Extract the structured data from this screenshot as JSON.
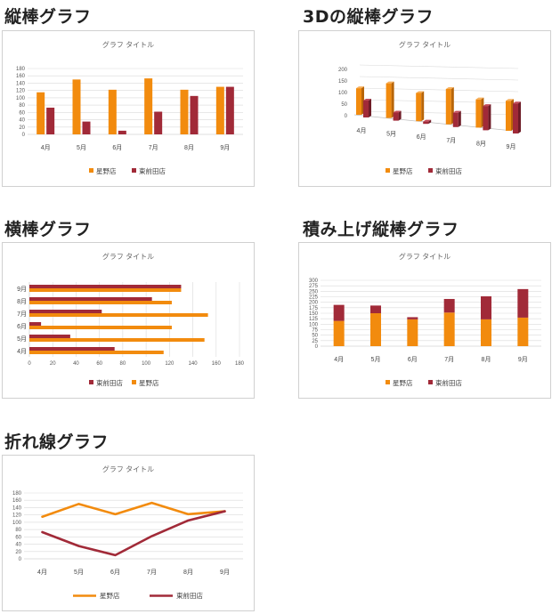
{
  "colors": {
    "s0": "#F28B0E",
    "s1": "#A12A38",
    "grid": "#D9D9D9",
    "axis": "#BFBFBF"
  },
  "charts": [
    {
      "heading": "縦棒グラフ",
      "chart_data": {
        "type": "bar",
        "title": "グラフ タイトル",
        "categories": [
          "4月",
          "5月",
          "6月",
          "7月",
          "8月",
          "9月"
        ],
        "series": [
          {
            "name": "星野店",
            "values": [
              115,
              150,
              122,
              153,
              122,
              130
            ]
          },
          {
            "name": "東前田店",
            "values": [
              73,
              35,
              10,
              62,
              105,
              130
            ]
          }
        ],
        "ylim": [
          0,
          180
        ],
        "yticks": [
          0,
          20,
          40,
          60,
          80,
          100,
          120,
          140,
          160,
          180
        ],
        "grid": true,
        "legend": "bottom"
      }
    },
    {
      "heading": "3Dの縦棒グラフ",
      "chart_data": {
        "type": "bar",
        "title": "グラフ タイトル",
        "categories": [
          "4月",
          "5月",
          "6月",
          "7月",
          "8月",
          "9月"
        ],
        "series": [
          {
            "name": "星野店",
            "values": [
              115,
              150,
              122,
              153,
              122,
              130
            ]
          },
          {
            "name": "東前田店",
            "values": [
              73,
              35,
              10,
              62,
              105,
              130
            ]
          }
        ],
        "ylim": [
          0,
          200
        ],
        "yticks": [
          0,
          50,
          100,
          150,
          200
        ],
        "grid": true,
        "legend": "bottom",
        "style": "3d"
      }
    },
    {
      "heading": "横棒グラフ",
      "chart_data": {
        "type": "bar",
        "orientation": "horizontal",
        "title": "グラフ タイトル",
        "categories": [
          "4月",
          "5月",
          "6月",
          "7月",
          "8月",
          "9月"
        ],
        "series": [
          {
            "name": "星野店",
            "values": [
              115,
              150,
              122,
              153,
              122,
              130
            ]
          },
          {
            "name": "東前田店",
            "values": [
              73,
              35,
              10,
              62,
              105,
              130
            ]
          }
        ],
        "xlim": [
          0,
          180
        ],
        "xticks": [
          0,
          20,
          40,
          60,
          80,
          100,
          120,
          140,
          160,
          180
        ],
        "grid": true,
        "legend": "bottom"
      }
    },
    {
      "heading": "積み上げ縦棒グラフ",
      "chart_data": {
        "type": "bar",
        "stacked": true,
        "title": "グラフ タイトル",
        "categories": [
          "4月",
          "5月",
          "6月",
          "7月",
          "8月",
          "9月"
        ],
        "series": [
          {
            "name": "星野店",
            "values": [
              115,
              150,
              122,
              153,
              122,
              130
            ]
          },
          {
            "name": "東前田店",
            "values": [
              73,
              35,
              10,
              62,
              105,
              130
            ]
          }
        ],
        "ylim": [
          0,
          300
        ],
        "yticks": [
          0,
          25,
          50,
          75,
          100,
          125,
          150,
          175,
          200,
          225,
          250,
          275,
          300
        ],
        "grid": true,
        "legend": "bottom"
      }
    },
    {
      "heading": "折れ線グラフ",
      "chart_data": {
        "type": "line",
        "title": "グラフ タイトル",
        "categories": [
          "4月",
          "5月",
          "6月",
          "7月",
          "8月",
          "9月"
        ],
        "series": [
          {
            "name": "星野店",
            "values": [
              115,
              150,
              122,
              153,
              122,
              130
            ]
          },
          {
            "name": "東前田店",
            "values": [
              73,
              35,
              10,
              62,
              105,
              130
            ]
          }
        ],
        "ylim": [
          0,
          180
        ],
        "yticks": [
          0,
          20,
          40,
          60,
          80,
          100,
          120,
          140,
          160,
          180
        ],
        "grid": true,
        "legend": "bottom"
      }
    }
  ]
}
